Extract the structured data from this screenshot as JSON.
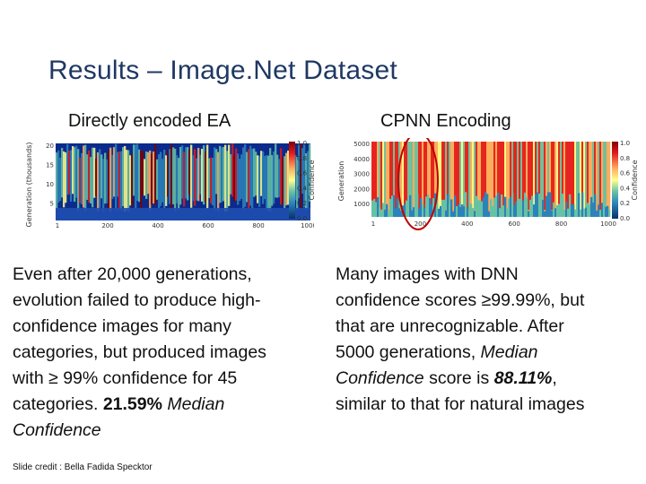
{
  "slide": {
    "title": "Results – Image.Net Dataset",
    "credit": "Slide credit : Bella Fadida Specktor"
  },
  "left": {
    "heading": "Directly encoded EA",
    "lines": [
      [
        "Even after 20,000 generations,"
      ],
      [
        "evolution failed to produce high-"
      ],
      [
        "confidence images for many"
      ],
      [
        "categories, but produced images"
      ],
      [
        "with ≥ 99% confidence for 45"
      ],
      [
        "categories. ",
        {
          "b": "21.59%"
        },
        " ",
        {
          "i": "Median"
        }
      ],
      [
        {
          "i": "Confidence"
        }
      ]
    ]
  },
  "right": {
    "heading": "CPNN Encoding",
    "lines": [
      [
        "Many images with DNN"
      ],
      [
        "confidence scores ≥99.99%, but"
      ],
      [
        "that are unrecognizable. After"
      ],
      [
        "5000 generations, ",
        {
          "i": "Median"
        }
      ],
      [
        {
          "i": "Confidence"
        },
        " score is ",
        {
          "bi": "88.11%"
        },
        ","
      ],
      [
        "similar to that for natural images"
      ]
    ]
  },
  "charts": {
    "left": {
      "ylabel": "Generation (thousands)",
      "cbar_label": "Confidence",
      "yticks": [
        "20",
        "15",
        "10",
        "5"
      ],
      "xticks": [
        "1",
        "200",
        "400",
        "600",
        "800",
        "1000"
      ],
      "cbar_ticks": [
        "1.0",
        "0.8",
        "0.6",
        "0.4",
        "0.2",
        "0.0"
      ]
    },
    "right": {
      "ylabel": "Generation",
      "cbar_label": "Confidence",
      "yticks": [
        "5000",
        "4000",
        "3000",
        "2000",
        "1000"
      ],
      "xticks": [
        "1",
        "200",
        "400",
        "600",
        "800",
        "1000"
      ],
      "cbar_ticks": [
        "1.0",
        "0.8",
        "0.6",
        "0.4",
        "0.2",
        "0.0"
      ],
      "highlight_color": "#c00000"
    }
  },
  "colors": {
    "title": "#1f3864",
    "heat_low": "#0b2a8c",
    "heat_high": "#d7191c"
  }
}
